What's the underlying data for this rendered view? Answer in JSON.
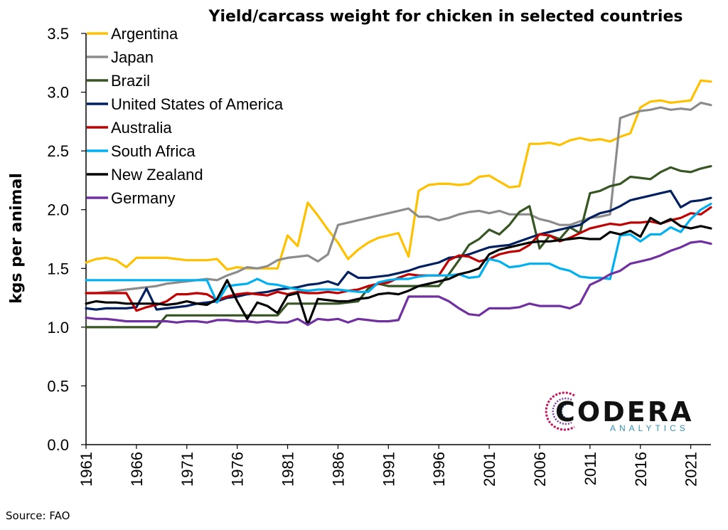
{
  "source_note": "Source: FAO",
  "logo": {
    "name": "CODERA",
    "subtitle": "ANALYTICS"
  },
  "chart_data": {
    "type": "line",
    "title": "Yield/carcass weight for chicken in selected countries",
    "xlabel": "",
    "ylabel": "kgs per animal",
    "ylim": [
      0,
      3.5
    ],
    "xlim": [
      1961,
      2023
    ],
    "yticks": [
      "0.0",
      "0.5",
      "1.0",
      "1.5",
      "2.0",
      "2.5",
      "3.0",
      "3.5"
    ],
    "xticks": [
      "1961",
      "1966",
      "1971",
      "1976",
      "1981",
      "1986",
      "1991",
      "1996",
      "2001",
      "2006",
      "2011",
      "2016",
      "2021"
    ],
    "legend_position": "top-left",
    "x": [
      1961,
      1962,
      1963,
      1964,
      1965,
      1966,
      1967,
      1968,
      1969,
      1970,
      1971,
      1972,
      1973,
      1974,
      1975,
      1976,
      1977,
      1978,
      1979,
      1980,
      1981,
      1982,
      1983,
      1984,
      1985,
      1986,
      1987,
      1988,
      1989,
      1990,
      1991,
      1992,
      1993,
      1994,
      1995,
      1996,
      1997,
      1998,
      1999,
      2000,
      2001,
      2002,
      2003,
      2004,
      2005,
      2006,
      2007,
      2008,
      2009,
      2010,
      2011,
      2012,
      2013,
      2014,
      2015,
      2016,
      2017,
      2018,
      2019,
      2020,
      2021,
      2022,
      2023
    ],
    "series": [
      {
        "name": "Argentina",
        "color": "#FFC000",
        "values": [
          1.55,
          1.58,
          1.59,
          1.57,
          1.51,
          1.59,
          1.59,
          1.59,
          1.59,
          1.58,
          1.57,
          1.57,
          1.57,
          1.58,
          1.49,
          1.51,
          1.5,
          1.5,
          1.5,
          1.5,
          1.78,
          1.69,
          2.06,
          1.95,
          1.83,
          1.72,
          1.58,
          1.66,
          1.72,
          1.76,
          1.78,
          1.8,
          1.6,
          2.16,
          2.21,
          2.22,
          2.22,
          2.21,
          2.22,
          2.28,
          2.29,
          2.24,
          2.19,
          2.2,
          2.56,
          2.56,
          2.57,
          2.55,
          2.59,
          2.61,
          2.59,
          2.6,
          2.58,
          2.62,
          2.65,
          2.87,
          2.92,
          2.93,
          2.91,
          2.92,
          2.93,
          3.1,
          3.09
        ]
      },
      {
        "name": "Japan",
        "color": "#8C8C8C",
        "values": [
          1.29,
          1.29,
          1.3,
          1.31,
          1.32,
          1.33,
          1.34,
          1.35,
          1.37,
          1.38,
          1.39,
          1.4,
          1.41,
          1.4,
          1.44,
          1.47,
          1.51,
          1.5,
          1.52,
          1.57,
          1.59,
          1.6,
          1.61,
          1.56,
          1.62,
          1.87,
          1.89,
          1.91,
          1.93,
          1.95,
          1.97,
          1.99,
          2.01,
          1.94,
          1.94,
          1.91,
          1.93,
          1.96,
          1.98,
          1.99,
          1.97,
          1.99,
          1.96,
          1.96,
          1.96,
          1.92,
          1.9,
          1.87,
          1.87,
          1.9,
          1.93,
          1.94,
          1.96,
          2.78,
          2.81,
          2.84,
          2.85,
          2.87,
          2.85,
          2.86,
          2.85,
          2.91,
          2.89
        ]
      },
      {
        "name": "Brazil",
        "color": "#375623",
        "values": [
          1.0,
          1.0,
          1.0,
          1.0,
          1.0,
          1.0,
          1.0,
          1.0,
          1.1,
          1.1,
          1.1,
          1.1,
          1.1,
          1.1,
          1.1,
          1.1,
          1.1,
          1.1,
          1.1,
          1.1,
          1.2,
          1.2,
          1.2,
          1.2,
          1.2,
          1.2,
          1.21,
          1.22,
          1.33,
          1.37,
          1.35,
          1.35,
          1.35,
          1.35,
          1.35,
          1.35,
          1.45,
          1.57,
          1.7,
          1.75,
          1.83,
          1.79,
          1.87,
          1.98,
          2.03,
          1.67,
          1.78,
          1.75,
          1.85,
          1.8,
          2.14,
          2.16,
          2.2,
          2.22,
          2.28,
          2.27,
          2.26,
          2.32,
          2.36,
          2.33,
          2.32,
          2.35,
          2.37
        ]
      },
      {
        "name": "United States of America",
        "color": "#002060",
        "values": [
          1.16,
          1.15,
          1.16,
          1.16,
          1.16,
          1.17,
          1.33,
          1.15,
          1.16,
          1.17,
          1.18,
          1.2,
          1.21,
          1.22,
          1.25,
          1.26,
          1.28,
          1.29,
          1.3,
          1.32,
          1.33,
          1.34,
          1.36,
          1.37,
          1.39,
          1.36,
          1.47,
          1.42,
          1.42,
          1.43,
          1.44,
          1.46,
          1.48,
          1.51,
          1.53,
          1.55,
          1.59,
          1.6,
          1.62,
          1.65,
          1.68,
          1.69,
          1.7,
          1.73,
          1.76,
          1.79,
          1.81,
          1.83,
          1.85,
          1.87,
          1.93,
          1.97,
          1.99,
          2.03,
          2.08,
          2.1,
          2.12,
          2.14,
          2.16,
          2.02,
          2.07,
          2.08,
          2.1
        ]
      },
      {
        "name": "Australia",
        "color": "#C00000",
        "values": [
          1.29,
          1.29,
          1.29,
          1.29,
          1.29,
          1.14,
          1.17,
          1.19,
          1.22,
          1.28,
          1.28,
          1.29,
          1.28,
          1.23,
          1.26,
          1.28,
          1.29,
          1.28,
          1.27,
          1.3,
          1.28,
          1.3,
          1.29,
          1.29,
          1.3,
          1.29,
          1.31,
          1.32,
          1.35,
          1.37,
          1.38,
          1.42,
          1.45,
          1.44,
          1.44,
          1.44,
          1.57,
          1.61,
          1.6,
          1.56,
          1.58,
          1.62,
          1.64,
          1.65,
          1.7,
          1.79,
          1.78,
          1.73,
          1.76,
          1.8,
          1.84,
          1.86,
          1.88,
          1.87,
          1.89,
          1.89,
          1.9,
          1.88,
          1.91,
          1.93,
          1.97,
          1.96,
          2.02
        ]
      },
      {
        "name": "South Africa",
        "color": "#00B0F0",
        "values": [
          1.4,
          1.4,
          1.4,
          1.4,
          1.4,
          1.4,
          1.4,
          1.4,
          1.4,
          1.4,
          1.4,
          1.4,
          1.4,
          1.21,
          1.35,
          1.36,
          1.37,
          1.41,
          1.37,
          1.36,
          1.34,
          1.32,
          1.31,
          1.32,
          1.32,
          1.32,
          1.31,
          1.3,
          1.3,
          1.38,
          1.4,
          1.41,
          1.41,
          1.43,
          1.44,
          1.44,
          1.44,
          1.45,
          1.42,
          1.43,
          1.58,
          1.56,
          1.51,
          1.52,
          1.54,
          1.54,
          1.54,
          1.5,
          1.48,
          1.43,
          1.42,
          1.42,
          1.41,
          1.78,
          1.79,
          1.73,
          1.79,
          1.79,
          1.85,
          1.81,
          1.92,
          2.0,
          2.05
        ]
      },
      {
        "name": "New Zealand",
        "color": "#000000",
        "values": [
          1.2,
          1.22,
          1.21,
          1.21,
          1.2,
          1.2,
          1.2,
          1.2,
          1.19,
          1.2,
          1.22,
          1.2,
          1.19,
          1.24,
          1.4,
          1.22,
          1.07,
          1.21,
          1.18,
          1.12,
          1.27,
          1.29,
          1.02,
          1.24,
          1.23,
          1.22,
          1.22,
          1.24,
          1.25,
          1.28,
          1.29,
          1.28,
          1.31,
          1.35,
          1.37,
          1.39,
          1.41,
          1.45,
          1.47,
          1.5,
          1.62,
          1.66,
          1.68,
          1.7,
          1.72,
          1.73,
          1.73,
          1.74,
          1.75,
          1.76,
          1.75,
          1.75,
          1.81,
          1.79,
          1.82,
          1.77,
          1.93,
          1.88,
          1.92,
          1.86,
          1.84,
          1.86,
          1.84
        ]
      },
      {
        "name": "Germany",
        "color": "#7030A0",
        "values": [
          1.08,
          1.07,
          1.07,
          1.06,
          1.05,
          1.05,
          1.05,
          1.05,
          1.05,
          1.04,
          1.05,
          1.05,
          1.04,
          1.06,
          1.06,
          1.05,
          1.05,
          1.04,
          1.05,
          1.04,
          1.04,
          1.07,
          1.02,
          1.07,
          1.06,
          1.07,
          1.04,
          1.07,
          1.06,
          1.05,
          1.05,
          1.06,
          1.26,
          1.26,
          1.26,
          1.26,
          1.22,
          1.16,
          1.11,
          1.1,
          1.16,
          1.16,
          1.16,
          1.17,
          1.2,
          1.18,
          1.18,
          1.18,
          1.16,
          1.2,
          1.36,
          1.4,
          1.45,
          1.48,
          1.54,
          1.56,
          1.58,
          1.61,
          1.65,
          1.68,
          1.72,
          1.73,
          1.71
        ]
      }
    ]
  }
}
